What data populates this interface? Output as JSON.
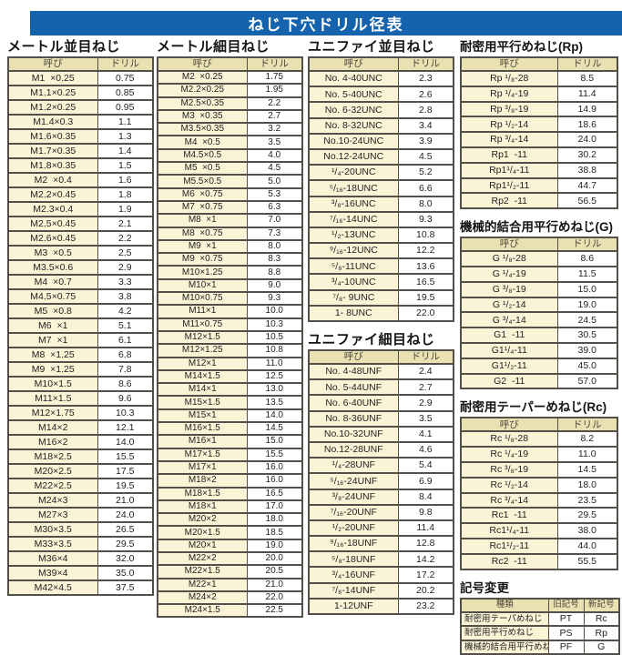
{
  "title": "ねじ下穴ドリル径表",
  "col_headers": {
    "name": "呼び",
    "drill": "ドリル"
  },
  "sections": {
    "metric_coarse": {
      "heading": "メートル並目ねじ",
      "rows": [
        [
          "M1  ×0.25",
          "0.75"
        ],
        [
          "M1.1×0.25",
          "0.85"
        ],
        [
          "M1.2×0.25",
          "0.95"
        ],
        [
          "M1.4×0.3",
          "1.1"
        ],
        [
          "M1.6×0.35",
          "1.3"
        ],
        [
          "M1.7×0.35",
          "1.4"
        ],
        [
          "M1.8×0.35",
          "1.5"
        ],
        [
          "M2  ×0.4",
          "1.6"
        ],
        [
          "M2.2×0.45",
          "1.8"
        ],
        [
          "M2.3×0.4",
          "1.9"
        ],
        [
          "M2.5×0.45",
          "2.1"
        ],
        [
          "M2.6×0.45",
          "2.2"
        ],
        [
          "M3  ×0.5",
          "2.5"
        ],
        [
          "M3.5×0.6",
          "2.9"
        ],
        [
          "M4  ×0.7",
          "3.3"
        ],
        [
          "M4.5×0.75",
          "3.8"
        ],
        [
          "M5  ×0.8",
          "4.2"
        ],
        [
          "M6  ×1",
          "5.1"
        ],
        [
          "M7  ×1",
          "6.1"
        ],
        [
          "M8  ×1.25",
          "6.8"
        ],
        [
          "M9  ×1.25",
          "7.8"
        ],
        [
          "M10×1.5",
          "8.6"
        ],
        [
          "M11×1.5",
          "9.6"
        ],
        [
          "M12×1.75",
          "10.3"
        ],
        [
          "M14×2",
          "12.1"
        ],
        [
          "M16×2",
          "14.0"
        ],
        [
          "M18×2.5",
          "15.5"
        ],
        [
          "M20×2.5",
          "17.5"
        ],
        [
          "M22×2.5",
          "19.5"
        ],
        [
          "M24×3",
          "21.0"
        ],
        [
          "M27×3",
          "24.0"
        ],
        [
          "M30×3.5",
          "26.5"
        ],
        [
          "M33×3.5",
          "29.5"
        ],
        [
          "M36×4",
          "32.0"
        ],
        [
          "M39×4",
          "35.0"
        ],
        [
          "M42×4.5",
          "37.5"
        ]
      ]
    },
    "metric_fine": {
      "heading": "メートル細目ねじ",
      "rows": [
        [
          "M2  ×0.25",
          "1.75"
        ],
        [
          "M2.2×0.25",
          "1.95"
        ],
        [
          "M2.5×0.35",
          "2.2"
        ],
        [
          "M3  ×0.35",
          "2.7"
        ],
        [
          "M3.5×0.35",
          "3.2"
        ],
        [
          "M4  ×0.5",
          "3.5"
        ],
        [
          "M4.5×0.5",
          "4.0"
        ],
        [
          "M5  ×0.5",
          "4.5"
        ],
        [
          "M5.5×0.5",
          "5.0"
        ],
        [
          "M6  ×0.75",
          "5.3"
        ],
        [
          "M7  ×0.75",
          "6.3"
        ],
        [
          "M8  ×1",
          "7.0"
        ],
        [
          "M8  ×0.75",
          "7.3"
        ],
        [
          "M9  ×1",
          "8.0"
        ],
        [
          "M9  ×0.75",
          "8.3"
        ],
        [
          "M10×1.25",
          "8.8"
        ],
        [
          "M10×1",
          "9.0"
        ],
        [
          "M10×0.75",
          "9.3"
        ],
        [
          "M11×1",
          "10.0"
        ],
        [
          "M11×0.75",
          "10.3"
        ],
        [
          "M12×1.5",
          "10.5"
        ],
        [
          "M12×1.25",
          "10.8"
        ],
        [
          "M12×1",
          "11.0"
        ],
        [
          "M14×1.5",
          "12.5"
        ],
        [
          "M14×1",
          "13.0"
        ],
        [
          "M15×1.5",
          "13.5"
        ],
        [
          "M15×1",
          "14.0"
        ],
        [
          "M16×1.5",
          "14.5"
        ],
        [
          "M16×1",
          "15.0"
        ],
        [
          "M17×1.5",
          "15.5"
        ],
        [
          "M17×1",
          "16.0"
        ],
        [
          "M18×2",
          "16.0"
        ],
        [
          "M18×1.5",
          "16.5"
        ],
        [
          "M18×1",
          "17.0"
        ],
        [
          "M20×2",
          "18.0"
        ],
        [
          "M20×1.5",
          "18.5"
        ],
        [
          "M20×1",
          "19.0"
        ],
        [
          "M22×2",
          "20.0"
        ],
        [
          "M22×1.5",
          "20.5"
        ],
        [
          "M22×1",
          "21.0"
        ],
        [
          "M24×2",
          "22.0"
        ],
        [
          "M24×1.5",
          "22.5"
        ]
      ]
    },
    "unified_coarse": {
      "heading": "ユニファイ並目ねじ",
      "rows": [
        [
          "No. 4-40UNC",
          "2.3"
        ],
        [
          "No. 5-40UNC",
          "2.6"
        ],
        [
          "No. 6-32UNC",
          "2.8"
        ],
        [
          "No. 8-32UNC",
          "3.4"
        ],
        [
          "No.10-24UNC",
          "3.9"
        ],
        [
          "No.12-24UNC",
          "4.5"
        ],
        [
          "¹/₄-20UNC",
          "5.2"
        ],
        [
          "⁵/₁₆-18UNC",
          "6.6"
        ],
        [
          "³/₈-16UNC",
          "8.0"
        ],
        [
          "⁷/₁₆-14UNC",
          "9.3"
        ],
        [
          "¹/₂-13UNC",
          "10.8"
        ],
        [
          "⁹/₁₆-12UNC",
          "12.2"
        ],
        [
          "⁵/₈-11UNC",
          "13.6"
        ],
        [
          "³/₄-10UNC",
          "16.5"
        ],
        [
          "⁷/₈- 9UNC",
          "19.5"
        ],
        [
          "1- 8UNC",
          "22.0"
        ]
      ]
    },
    "unified_fine": {
      "heading": "ユニファイ細目ねじ",
      "rows": [
        [
          "No. 4-48UNF",
          "2.4"
        ],
        [
          "No. 5-44UNF",
          "2.7"
        ],
        [
          "No. 6-40UNF",
          "2.9"
        ],
        [
          "No. 8-36UNF",
          "3.5"
        ],
        [
          "No.10-32UNF",
          "4.1"
        ],
        [
          "No.12-28UNF",
          "4.6"
        ],
        [
          "¹/₄-28UNF",
          "5.4"
        ],
        [
          "⁵/₁₆-24UNF",
          "6.9"
        ],
        [
          "³/₈-24UNF",
          "8.4"
        ],
        [
          "⁷/₁₆-20UNF",
          "9.8"
        ],
        [
          "¹/₂-20UNF",
          "11.4"
        ],
        [
          "⁹/₁₆-18UNF",
          "12.8"
        ],
        [
          "⁵/₈-18UNF",
          "14.2"
        ],
        [
          "³/₄-16UNF",
          "17.2"
        ],
        [
          "⁷/₈-14UNF",
          "20.2"
        ],
        [
          "1-12UNF",
          "23.2"
        ]
      ]
    },
    "rp": {
      "heading": "耐密用平行めねじ(Rp)",
      "rows": [
        [
          "Rp ¹/₈-28",
          "8.5"
        ],
        [
          "Rp ¹/₄-19",
          "11.4"
        ],
        [
          "Rp ³/₈-19",
          "14.9"
        ],
        [
          "Rp ¹/₂-14",
          "18.6"
        ],
        [
          "Rp ³/₄-14",
          "24.0"
        ],
        [
          "Rp1  -11",
          "30.2"
        ],
        [
          "Rp1¹/₄-11",
          "38.8"
        ],
        [
          "Rp1¹/₂-11",
          "44.7"
        ],
        [
          "Rp2  -11",
          "56.5"
        ]
      ]
    },
    "g": {
      "heading": "機械的結合用平行めねじ(G)",
      "rows": [
        [
          "G ¹/₈-28",
          "8.6"
        ],
        [
          "G ¹/₄-19",
          "11.5"
        ],
        [
          "G ³/₈-19",
          "15.0"
        ],
        [
          "G ¹/₂-14",
          "19.0"
        ],
        [
          "G ³/₄-14",
          "24.5"
        ],
        [
          "G1  -11",
          "30.5"
        ],
        [
          "G1¹/₄-11",
          "39.0"
        ],
        [
          "G1¹/₂-11",
          "45.0"
        ],
        [
          "G2  -11",
          "57.0"
        ]
      ]
    },
    "rc": {
      "heading": "耐密用テーパーめねじ(Rc)",
      "rows": [
        [
          "Rc ¹/₈-28",
          "8.2"
        ],
        [
          "Rc ¹/₄-19",
          "11.0"
        ],
        [
          "Rc ³/₈-19",
          "14.5"
        ],
        [
          "Rc ¹/₂-14",
          "18.0"
        ],
        [
          "Rc ³/₄-14",
          "23.5"
        ],
        [
          "Rc1  -11",
          "29.5"
        ],
        [
          "Rc1¹/₄-11",
          "38.0"
        ],
        [
          "Rc1¹/₂-11",
          "44.0"
        ],
        [
          "Rc2  -11",
          "55.5"
        ]
      ]
    },
    "symbol_change": {
      "heading": "記号変更",
      "headers": [
        "種類",
        "旧記号",
        "新記号"
      ],
      "rows": [
        [
          "耐密用テーパめねじ",
          "PT",
          "Rc"
        ],
        [
          "耐密用平行めねじ",
          "PS",
          "Rp"
        ],
        [
          "機械的結合用平行めねじ",
          "PF",
          "G"
        ]
      ]
    }
  },
  "colors": {
    "title_bar": "#1563ac",
    "header_cell": "#e9e1b2",
    "name_cell": "#faf3d6",
    "drill_cell": "#ffffff",
    "border": "#53504a"
  }
}
